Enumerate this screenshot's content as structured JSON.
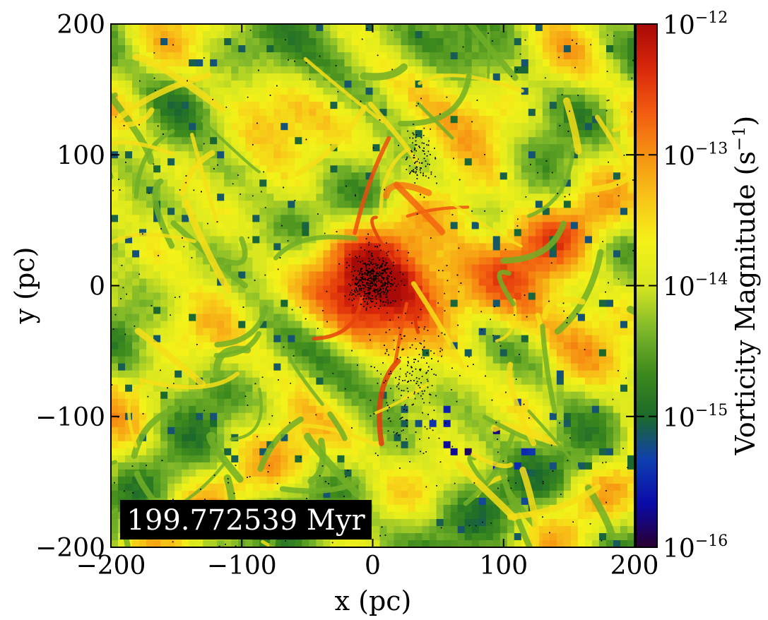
{
  "chart_data": {
    "type": "heatmap",
    "title": "",
    "xlabel": "x  (pc)",
    "ylabel": "y  (pc)",
    "xlim": [
      -200,
      200
    ],
    "ylim": [
      -200,
      200
    ],
    "xticks": [
      -200,
      -100,
      0,
      100,
      200
    ],
    "yticks": [
      -200,
      -100,
      0,
      100,
      200
    ],
    "xtick_labels": [
      "−200",
      "−100",
      "0",
      "100",
      "200"
    ],
    "ytick_labels": [
      "−200",
      "−100",
      "0",
      "100",
      "200"
    ],
    "grid": false,
    "colorbar": {
      "label": "Vorticity Magnitude  (s",
      "label_exp": "−1",
      "label_end": ")",
      "scale": "log",
      "range": [
        1e-16,
        1e-12
      ],
      "ticks": [
        {
          "base": "10",
          "exp": "−16",
          "value": 1e-16
        },
        {
          "base": "10",
          "exp": "−15",
          "value": 1e-15
        },
        {
          "base": "10",
          "exp": "−14",
          "value": 1e-14
        },
        {
          "base": "10",
          "exp": "−13",
          "value": 1e-13
        },
        {
          "base": "10",
          "exp": "−12",
          "value": 1e-12
        }
      ],
      "colormap": [
        "#2a0030",
        "#0a0aa8",
        "#0f3fb0",
        "#1c6a2a",
        "#3d8a1d",
        "#7fb82a",
        "#d6e620",
        "#f4f218",
        "#f8c418",
        "#f69212",
        "#f25a10",
        "#d8260a",
        "#a80a08"
      ]
    },
    "overlay": {
      "points": "black star particles",
      "description_hidden": true
    },
    "annotation": "199.772539 Myr"
  }
}
